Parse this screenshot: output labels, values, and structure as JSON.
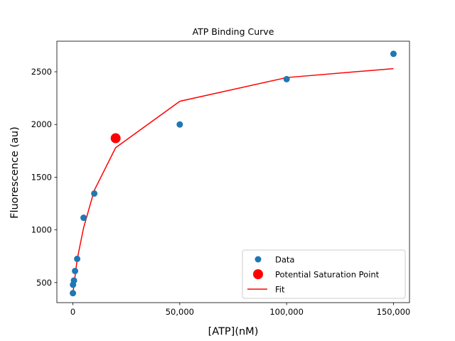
{
  "chart_data": {
    "type": "scatter",
    "title": "ATP Binding Curve",
    "xlabel": "[ATP](nM)",
    "ylabel": "Fluorescence (au)",
    "xlim": [
      -7500,
      157500
    ],
    "ylim": [
      310,
      2790
    ],
    "x_ticks": [
      0,
      50000,
      100000,
      150000
    ],
    "x_tick_labels": [
      "0",
      "50,000",
      "100,000",
      "150,000"
    ],
    "y_ticks": [
      500,
      1000,
      1500,
      2000,
      2500
    ],
    "y_tick_labels": [
      "500",
      "1000",
      "1500",
      "2000",
      "2500"
    ],
    "grid": false,
    "legend_position": "lower-right",
    "series": [
      {
        "name": "Data",
        "kind": "scatter",
        "color": "#1f77b4",
        "points": [
          {
            "x": 0,
            "y": 400
          },
          {
            "x": 50,
            "y": 480
          },
          {
            "x": 500,
            "y": 520
          },
          {
            "x": 1000,
            "y": 610
          },
          {
            "x": 2000,
            "y": 725
          },
          {
            "x": 5000,
            "y": 1115
          },
          {
            "x": 10000,
            "y": 1345
          },
          {
            "x": 50000,
            "y": 2000
          },
          {
            "x": 100000,
            "y": 2430
          },
          {
            "x": 150000,
            "y": 2670
          }
        ]
      },
      {
        "name": "Potential Saturation Point",
        "kind": "scatter",
        "color": "#ff0000",
        "points": [
          {
            "x": 20000,
            "y": 1870
          }
        ]
      },
      {
        "name": "Fit",
        "kind": "line",
        "color": "#ff0000",
        "points": [
          {
            "x": 0,
            "y": 410
          },
          {
            "x": 50,
            "y": 412
          },
          {
            "x": 500,
            "y": 470
          },
          {
            "x": 1000,
            "y": 560
          },
          {
            "x": 2000,
            "y": 720
          },
          {
            "x": 5000,
            "y": 1020
          },
          {
            "x": 10000,
            "y": 1375
          },
          {
            "x": 20000,
            "y": 1780
          },
          {
            "x": 50000,
            "y": 2220
          },
          {
            "x": 100000,
            "y": 2445
          },
          {
            "x": 150000,
            "y": 2530
          }
        ]
      }
    ]
  }
}
